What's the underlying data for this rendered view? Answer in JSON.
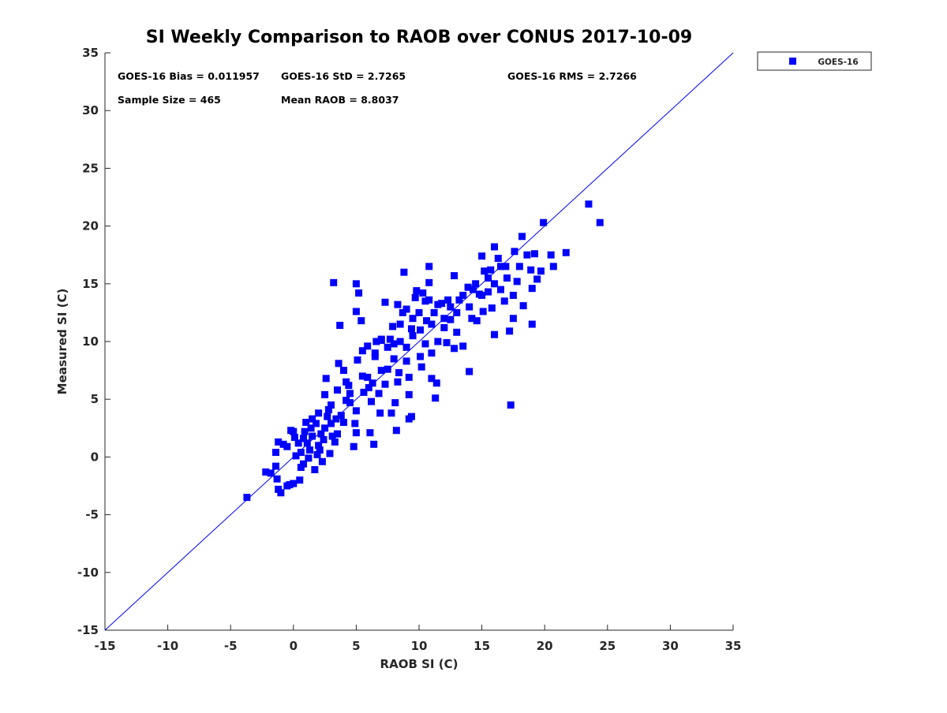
{
  "chart_data": {
    "type": "scatter",
    "title": "SI Weekly Comparison to RAOB over CONUS 2017-10-09",
    "xlabel": "RAOB SI (C)",
    "ylabel": "Measured SI (C)",
    "xlim": [
      -15,
      35
    ],
    "ylim": [
      -15,
      35
    ],
    "xticks": [
      "-15",
      "-10",
      "-5",
      "0",
      "5",
      "10",
      "15",
      "20",
      "25",
      "30",
      "35"
    ],
    "yticks": [
      "-15",
      "-10",
      "-5",
      "0",
      "5",
      "10",
      "15",
      "20",
      "25",
      "30",
      "35"
    ],
    "grid": false,
    "legend": {
      "placement": "outside-top-right",
      "entries": [
        "GOES-16"
      ]
    },
    "stats": {
      "bias": "GOES-16 Bias = 0.011957",
      "std": "GOES-16 StD = 2.7265",
      "rms": "GOES-16 RMS = 2.7266",
      "sample": "Sample Size = 465",
      "mean": "Mean RAOB = 8.8037"
    },
    "reference_line": {
      "name": "1:1 line",
      "from": [
        -15,
        -15
      ],
      "to": [
        35,
        35
      ],
      "color": "#0000ff"
    },
    "series": [
      {
        "name": "GOES-16",
        "color": "#0000ff",
        "marker": "square",
        "points": [
          [
            -3.7,
            -3.5
          ],
          [
            -2.2,
            -1.3
          ],
          [
            -1.8,
            -1.4
          ],
          [
            -1.4,
            -0.8
          ],
          [
            -1.3,
            -1.9
          ],
          [
            -1.2,
            -2.8
          ],
          [
            -1,
            -3.1
          ],
          [
            -1.4,
            0.4
          ],
          [
            -1.2,
            1.3
          ],
          [
            -0.5,
            0.9
          ],
          [
            -0.5,
            -2.5
          ],
          [
            -0.3,
            -2.4
          ],
          [
            0,
            -2.3
          ],
          [
            0.5,
            -2
          ],
          [
            -0.2,
            2.3
          ],
          [
            0,
            2.2
          ],
          [
            0.1,
            1.7
          ],
          [
            0.4,
            1.2
          ],
          [
            0.6,
            0.4
          ],
          [
            0.8,
            -0.6
          ],
          [
            0.6,
            -0.9
          ],
          [
            0.9,
            2.2
          ],
          [
            1.1,
            1.2
          ],
          [
            1.3,
            0.6
          ],
          [
            1.4,
            2.5
          ],
          [
            1.5,
            3.3
          ],
          [
            1.7,
            -1.1
          ],
          [
            1.9,
            0.2
          ],
          [
            2.0,
            3.8
          ],
          [
            2.2,
            2.0
          ],
          [
            2.4,
            1.5
          ],
          [
            2.3,
            -0.4
          ],
          [
            2.5,
            5.4
          ],
          [
            2.6,
            6.8
          ],
          [
            2.8,
            4.1
          ],
          [
            3.0,
            2.9
          ],
          [
            2.9,
            0.3
          ],
          [
            3.3,
            1.3
          ],
          [
            3.4,
            3.3
          ],
          [
            3.5,
            5.8
          ],
          [
            3.6,
            8.1
          ],
          [
            3.7,
            11.4
          ],
          [
            3.2,
            15.1
          ],
          [
            4.0,
            7.5
          ],
          [
            4.2,
            6.5
          ],
          [
            4.5,
            4.7
          ],
          [
            4.8,
            0.9
          ],
          [
            5.0,
            2.1
          ],
          [
            5.1,
            8.4
          ],
          [
            5.0,
            12.6
          ],
          [
            5.0,
            15.0
          ],
          [
            5.2,
            14.2
          ],
          [
            5.4,
            11.8
          ],
          [
            5.5,
            9.2
          ],
          [
            5.9,
            6.9
          ],
          [
            6.1,
            2.1
          ],
          [
            6.2,
            4.8
          ],
          [
            6.5,
            8.7
          ],
          [
            6.4,
            1.1
          ],
          [
            7.0,
            10.1
          ],
          [
            6.9,
            3.8
          ],
          [
            7.3,
            13.4
          ],
          [
            7.5,
            7.6
          ],
          [
            7.8,
            3.8
          ],
          [
            8.0,
            9.8
          ],
          [
            8.1,
            4.7
          ],
          [
            8.2,
            2.3
          ],
          [
            8.3,
            6.5
          ],
          [
            8.5,
            11.5
          ],
          [
            8.8,
            16.0
          ],
          [
            9.0,
            8.3
          ],
          [
            9.2,
            3.3
          ],
          [
            9.2,
            5.4
          ],
          [
            9.4,
            3.5
          ],
          [
            9.5,
            12.0
          ],
          [
            9.8,
            14.4
          ],
          [
            10.1,
            11.0
          ],
          [
            10.2,
            7.8
          ],
          [
            10.5,
            9.8
          ],
          [
            10.8,
            16.5
          ],
          [
            10.8,
            15.1
          ],
          [
            11.0,
            6.8
          ],
          [
            11.2,
            12.5
          ],
          [
            11.4,
            6.4
          ],
          [
            11.3,
            5.1
          ],
          [
            11.8,
            13.3
          ],
          [
            12.2,
            9.9
          ],
          [
            12.5,
            11.9
          ],
          [
            12.8,
            15.7
          ],
          [
            13.2,
            13.6
          ],
          [
            13.5,
            9.6
          ],
          [
            14.0,
            7.4
          ],
          [
            14.3,
            14.5
          ],
          [
            14.6,
            11.8
          ],
          [
            15.0,
            17.4
          ],
          [
            15.2,
            16.1
          ],
          [
            15.5,
            14.3
          ],
          [
            15.8,
            12.9
          ],
          [
            16.0,
            18.2
          ],
          [
            16.0,
            10.6
          ],
          [
            16.5,
            16.5
          ],
          [
            16.8,
            13.5
          ],
          [
            17.3,
            4.5
          ],
          [
            17.2,
            10.9
          ],
          [
            17.5,
            12.0
          ],
          [
            17.8,
            15.2
          ],
          [
            18.2,
            19.1
          ],
          [
            18.3,
            13.1
          ],
          [
            18.6,
            17.5
          ],
          [
            19.0,
            11.5
          ],
          [
            19.0,
            14.6
          ],
          [
            19.4,
            15.4
          ],
          [
            19.9,
            20.3
          ],
          [
            19.7,
            16.1
          ],
          [
            20.5,
            17.5
          ],
          [
            21.7,
            17.7
          ],
          [
            20.7,
            16.5
          ],
          [
            23.5,
            21.9
          ],
          [
            24.4,
            20.3
          ],
          [
            1,
            3
          ],
          [
            1.5,
            1.8
          ],
          [
            2,
            1
          ],
          [
            2.5,
            2.5
          ],
          [
            3,
            4.5
          ],
          [
            3.5,
            2
          ],
          [
            4,
            3
          ],
          [
            4.5,
            5.5
          ],
          [
            5,
            4
          ],
          [
            5.5,
            7
          ],
          [
            6,
            6
          ],
          [
            6.5,
            9
          ],
          [
            7,
            7.5
          ],
          [
            7.5,
            9.5
          ],
          [
            8,
            8.5
          ],
          [
            8.5,
            10
          ],
          [
            9,
            9.5
          ],
          [
            9.5,
            10.5
          ],
          [
            10,
            12.5
          ],
          [
            10.5,
            13.5
          ],
          [
            11,
            11.5
          ],
          [
            11.5,
            10
          ],
          [
            12,
            12
          ],
          [
            12.5,
            13
          ],
          [
            13,
            12.5
          ],
          [
            13.5,
            14
          ],
          [
            14,
            13
          ],
          [
            14.5,
            15
          ],
          [
            15,
            14
          ],
          [
            15.5,
            15.5
          ],
          [
            16,
            15
          ],
          [
            16.5,
            14.5
          ],
          [
            17,
            15.5
          ],
          [
            17.5,
            14
          ],
          [
            18,
            16.5
          ],
          [
            7,
            10.2
          ],
          [
            7.7,
            10.2
          ],
          [
            8.3,
            13.2
          ],
          [
            9,
            12.8
          ],
          [
            9.7,
            13.8
          ],
          [
            10.3,
            14.2
          ],
          [
            10.8,
            13.6
          ],
          [
            11.5,
            13.2
          ],
          [
            12.3,
            13.6
          ],
          [
            8.7,
            12.5
          ],
          [
            6.8,
            5.5
          ],
          [
            7.3,
            6.3
          ],
          [
            8.4,
            7.3
          ],
          [
            9.2,
            6.9
          ],
          [
            10.1,
            8.7
          ],
          [
            11.0,
            9.0
          ],
          [
            12.8,
            9.4
          ],
          [
            4.2,
            4.9
          ],
          [
            3.8,
            3.6
          ],
          [
            2.7,
            3.5
          ],
          [
            1.8,
            2.9
          ],
          [
            0.8,
            1.6
          ],
          [
            0.2,
            0.1
          ],
          [
            -0.8,
            1.1
          ],
          [
            1.2,
            -0.1
          ],
          [
            2.1,
            0.6
          ],
          [
            3.1,
            1.8
          ],
          [
            4.9,
            2.9
          ],
          [
            5.6,
            5.6
          ],
          [
            6.3,
            6.4
          ],
          [
            5.9,
            9.6
          ],
          [
            6.6,
            10.0
          ],
          [
            4.4,
            6.2
          ],
          [
            7.9,
            11.3
          ],
          [
            9.4,
            11.1
          ],
          [
            10.6,
            11.8
          ],
          [
            13.9,
            14.7
          ],
          [
            14.8,
            14.1
          ],
          [
            15.7,
            16.2
          ],
          [
            16.3,
            17.2
          ],
          [
            17.6,
            17.8
          ],
          [
            16.9,
            16.5
          ],
          [
            15.1,
            12.6
          ],
          [
            13.0,
            10.8
          ],
          [
            12.0,
            11.2
          ],
          [
            14.2,
            12.0
          ],
          [
            18.9,
            16.2
          ],
          [
            19.2,
            17.6
          ]
        ]
      }
    ]
  }
}
